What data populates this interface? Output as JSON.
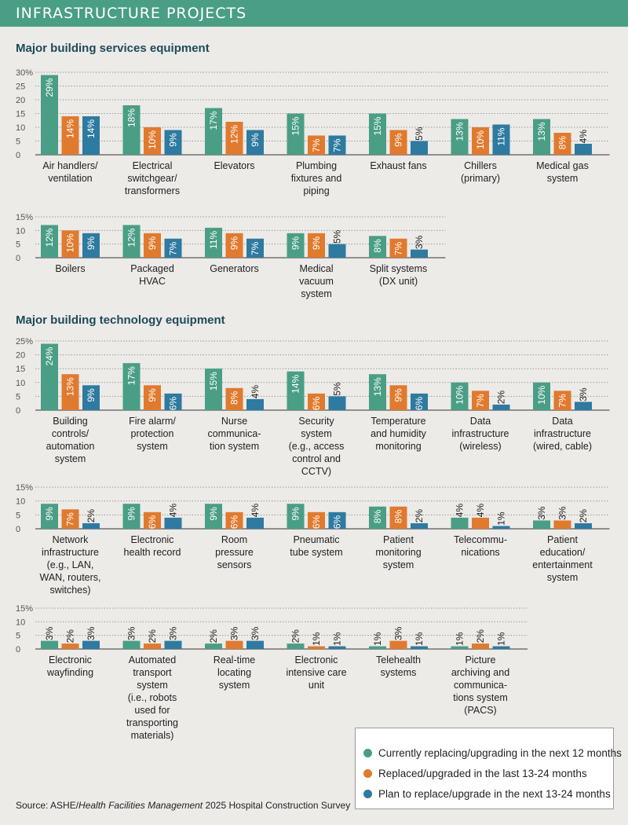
{
  "header": {
    "title": "INFRASTRUCTURE PROJECTS"
  },
  "sections": [
    {
      "title": "Major building services equipment"
    },
    {
      "title": "Major building technology equipment"
    }
  ],
  "legend": [
    {
      "label": "Currently replacing/upgrading in the next 12 months",
      "color": "#4a9e85"
    },
    {
      "label": "Replaced/upgraded in the last 13-24 months",
      "color": "#e07a2e"
    },
    {
      "label": "Plan to replace/upgrade in the next 13-24 months",
      "color": "#2e7aa0"
    }
  ],
  "source": {
    "prefix": "Source: ASHE/",
    "italic": "Health Facilities Management",
    "suffix": " 2025 Hospital Construction Survey"
  },
  "chart_data": [
    {
      "type": "bar",
      "ylim": [
        0,
        30
      ],
      "yticks": [
        "0",
        "5",
        "10",
        "15",
        "20",
        "25",
        "30%"
      ],
      "categories": [
        {
          "label": [
            "Air handlers/",
            "ventilation"
          ],
          "values": [
            29,
            14,
            14
          ]
        },
        {
          "label": [
            "Electrical",
            "switchgear/",
            "transformers"
          ],
          "values": [
            18,
            10,
            9
          ]
        },
        {
          "label": [
            "Elevators"
          ],
          "values": [
            17,
            12,
            9
          ]
        },
        {
          "label": [
            "Plumbing",
            "fixtures and",
            "piping"
          ],
          "values": [
            15,
            7,
            7
          ]
        },
        {
          "label": [
            "Exhaust fans"
          ],
          "values": [
            15,
            9,
            5
          ]
        },
        {
          "label": [
            "Chillers",
            "(primary)"
          ],
          "values": [
            13,
            10,
            11
          ]
        },
        {
          "label": [
            "Medical gas",
            "system"
          ],
          "values": [
            13,
            8,
            4
          ]
        }
      ]
    },
    {
      "type": "bar",
      "ylim": [
        0,
        15
      ],
      "yticks": [
        "0",
        "5",
        "10",
        "15%"
      ],
      "categories": [
        {
          "label": [
            "Boilers"
          ],
          "values": [
            12,
            10,
            9
          ]
        },
        {
          "label": [
            "Packaged",
            "HVAC"
          ],
          "values": [
            12,
            9,
            7
          ]
        },
        {
          "label": [
            "Generators"
          ],
          "values": [
            11,
            9,
            7
          ]
        },
        {
          "label": [
            "Medical",
            "vacuum",
            "system"
          ],
          "values": [
            9,
            9,
            5
          ]
        },
        {
          "label": [
            "Split systems",
            "(DX unit)"
          ],
          "values": [
            8,
            7,
            3
          ]
        }
      ]
    },
    {
      "type": "bar",
      "ylim": [
        0,
        25
      ],
      "yticks": [
        "0",
        "5",
        "10",
        "15",
        "20",
        "25%"
      ],
      "categories": [
        {
          "label": [
            "Building",
            "controls/",
            "automation",
            "system"
          ],
          "values": [
            24,
            13,
            9
          ]
        },
        {
          "label": [
            "Fire alarm/",
            "protection",
            "system"
          ],
          "values": [
            17,
            9,
            6
          ]
        },
        {
          "label": [
            "Nurse",
            "communica-",
            "tion system"
          ],
          "values": [
            15,
            8,
            4
          ]
        },
        {
          "label": [
            "Security",
            "system",
            "(e.g., access",
            "control and",
            "CCTV)"
          ],
          "values": [
            14,
            6,
            5
          ]
        },
        {
          "label": [
            "Temperature",
            "and humidity",
            "monitoring"
          ],
          "values": [
            13,
            9,
            6
          ]
        },
        {
          "label": [
            "Data",
            "infrastructure",
            "(wireless)"
          ],
          "values": [
            10,
            7,
            2
          ]
        },
        {
          "label": [
            "Data",
            "infrastructure",
            "(wired, cable)"
          ],
          "values": [
            10,
            7,
            3
          ]
        }
      ]
    },
    {
      "type": "bar",
      "ylim": [
        0,
        15
      ],
      "yticks": [
        "0",
        "5",
        "10",
        "15%"
      ],
      "categories": [
        {
          "label": [
            "Network",
            "infrastructure",
            "(e.g., LAN,",
            "WAN, routers,",
            "switches)"
          ],
          "values": [
            9,
            7,
            2
          ]
        },
        {
          "label": [
            "Electronic",
            "health record"
          ],
          "values": [
            9,
            6,
            4
          ]
        },
        {
          "label": [
            "Room",
            "pressure",
            "sensors"
          ],
          "values": [
            9,
            6,
            4
          ]
        },
        {
          "label": [
            "Pneumatic",
            "tube system"
          ],
          "values": [
            9,
            6,
            6
          ]
        },
        {
          "label": [
            "Patient",
            "monitoring",
            "system"
          ],
          "values": [
            8,
            8,
            2
          ]
        },
        {
          "label": [
            "Telecommu-",
            "nications"
          ],
          "values": [
            4,
            4,
            1
          ]
        },
        {
          "label": [
            "Patient",
            "education/",
            "entertainment",
            "system"
          ],
          "values": [
            3,
            3,
            2
          ]
        }
      ]
    },
    {
      "type": "bar",
      "ylim": [
        0,
        15
      ],
      "yticks": [
        "0",
        "5",
        "10",
        "15%"
      ],
      "categories": [
        {
          "label": [
            "Electronic",
            "wayfinding"
          ],
          "values": [
            3,
            2,
            3
          ]
        },
        {
          "label": [
            "Automated",
            "transport",
            "system",
            "(i.e., robots",
            "used for",
            "transporting",
            "materials)"
          ],
          "values": [
            3,
            2,
            3
          ]
        },
        {
          "label": [
            "Real-time",
            "locating",
            "system"
          ],
          "values": [
            2,
            3,
            3
          ]
        },
        {
          "label": [
            "Electronic",
            "intensive care",
            "unit"
          ],
          "values": [
            2,
            1,
            1
          ]
        },
        {
          "label": [
            "Telehealth",
            "systems"
          ],
          "values": [
            1,
            3,
            1
          ]
        },
        {
          "label": [
            "Picture",
            "archiving and",
            "communica-",
            "tions system",
            "(PACS)"
          ],
          "values": [
            1,
            2,
            1
          ]
        }
      ]
    }
  ]
}
